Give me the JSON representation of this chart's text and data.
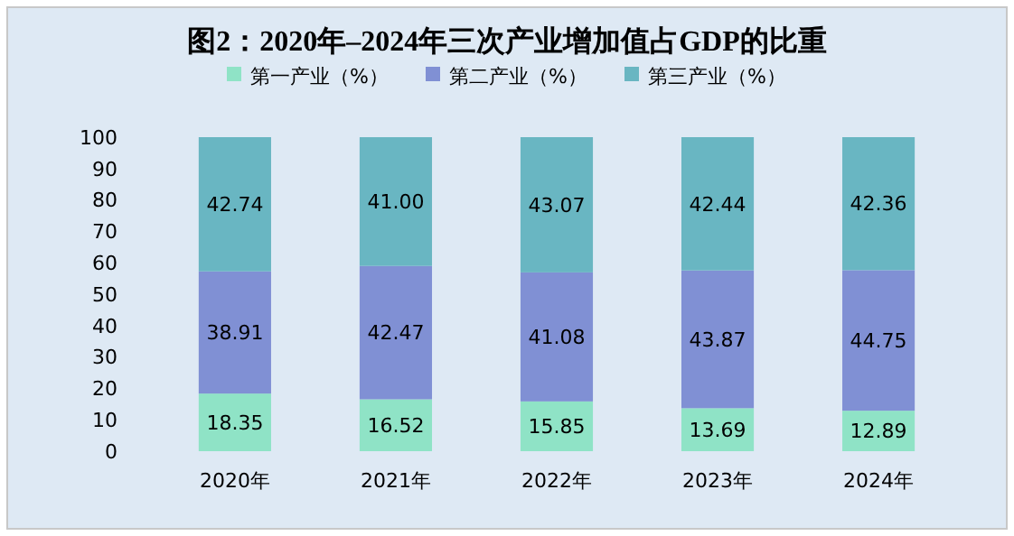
{
  "chart_data": {
    "type": "bar",
    "title": "图2：2020年–2024年三次产业增加值占GDP的比重",
    "categories": [
      "2020年",
      "2021年",
      "2022年",
      "2023年",
      "2024年"
    ],
    "series": [
      {
        "name": "第一产业（%）",
        "color": "#8fe3c6",
        "values": [
          18.35,
          16.52,
          15.85,
          13.69,
          12.89
        ],
        "value_labels": [
          "18.35",
          "16.52",
          "15.85",
          "13.69",
          "12.89"
        ]
      },
      {
        "name": "第二产业（%）",
        "color": "#8090d4",
        "values": [
          38.91,
          42.47,
          41.08,
          43.87,
          44.75
        ],
        "value_labels": [
          "38.91",
          "42.47",
          "41.08",
          "43.87",
          "44.75"
        ]
      },
      {
        "name": "第三产业（%）",
        "color": "#69b6c2",
        "values": [
          42.74,
          41.0,
          43.07,
          42.44,
          42.36
        ],
        "value_labels": [
          "42.74",
          "41.00",
          "43.07",
          "42.44",
          "42.36"
        ]
      }
    ],
    "stacked": true,
    "legend": "top",
    "ylim": [
      0,
      100
    ],
    "yticks": [
      0,
      10,
      20,
      30,
      40,
      50,
      60,
      70,
      80,
      90,
      100
    ]
  }
}
